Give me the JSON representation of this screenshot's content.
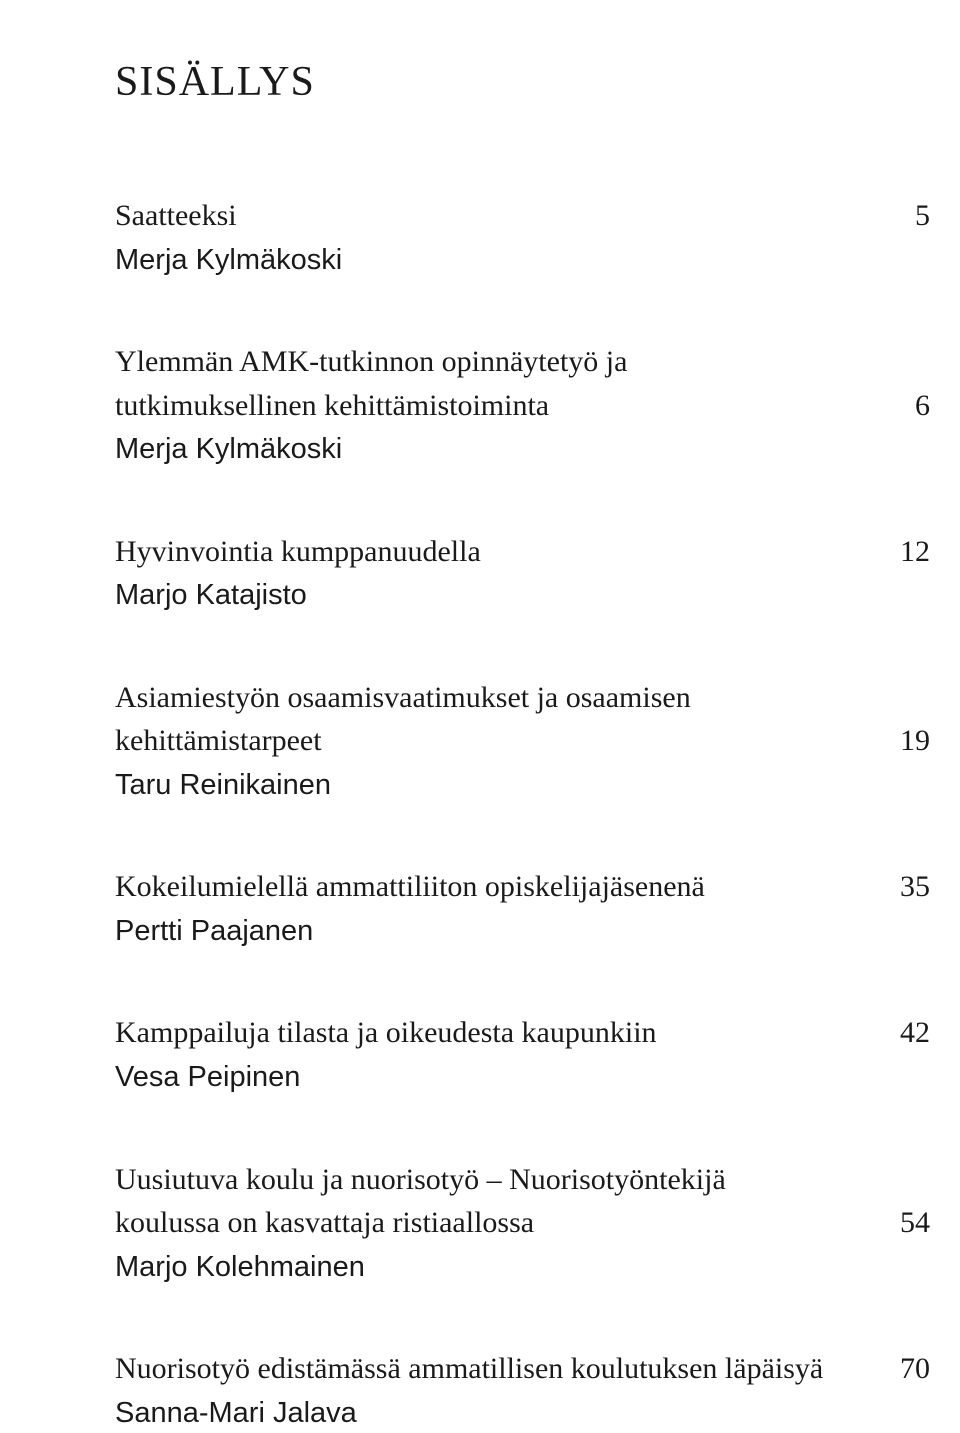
{
  "title": "SISÄLLYS",
  "entries": [
    {
      "lines": [
        "Saatteeksi"
      ],
      "page": "5",
      "author": "Merja Kylmäkoski"
    },
    {
      "lines": [
        "Ylemmän AMK-tutkinnon opinnäytetyö ja",
        "tutkimuksellinen kehittämistoiminta"
      ],
      "page": "6",
      "author": "Merja Kylmäkoski"
    },
    {
      "lines": [
        "Hyvinvointia kumppanuudella"
      ],
      "page": "12",
      "author": "Marjo Katajisto"
    },
    {
      "lines": [
        "Asiamiestyön osaamisvaatimukset ja osaamisen",
        "kehittämistarpeet"
      ],
      "page": "19",
      "author": "Taru Reinikainen"
    },
    {
      "lines": [
        "Kokeilumielellä ammattiliiton opiskelijajäsenenä"
      ],
      "page": "35",
      "author": "Pertti Paajanen"
    },
    {
      "lines": [
        "Kamppailuja tilasta ja oikeudesta kaupunkiin"
      ],
      "page": "42",
      "author": "Vesa Peipinen"
    },
    {
      "lines": [
        "Uusiutuva koulu ja nuorisotyö – Nuorisotyöntekijä",
        "koulussa on kasvattaja ristiaallossa"
      ],
      "page": "54",
      "author": "Marjo Kolehmainen"
    },
    {
      "lines": [
        "Nuorisotyö edistämässä ammatillisen koulutuksen läpäisyä"
      ],
      "page": "70",
      "author": "Sanna-Mari Jalava"
    }
  ]
}
